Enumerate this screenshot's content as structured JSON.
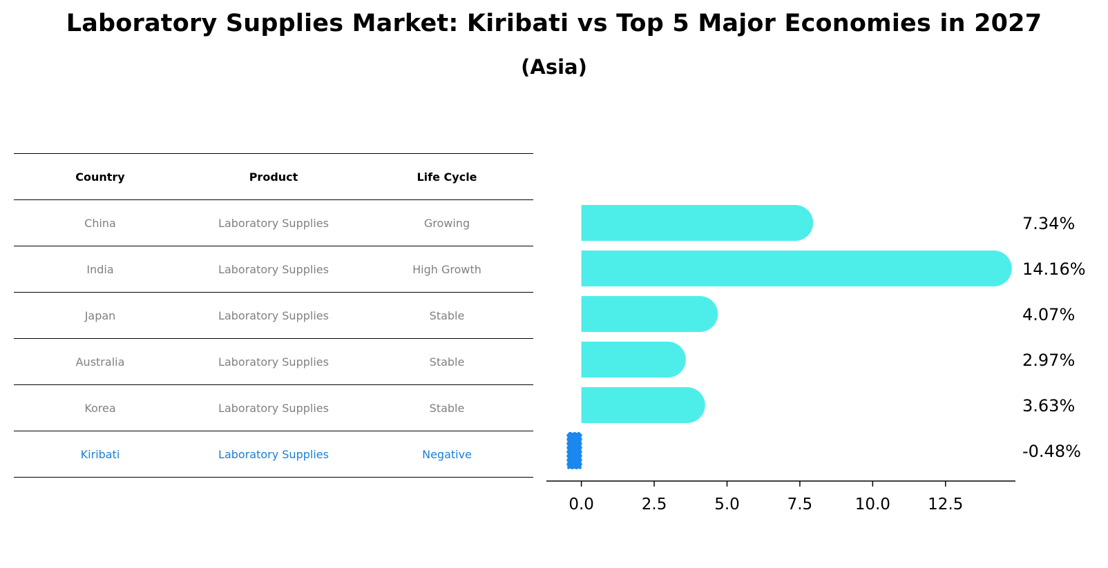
{
  "title": "Laboratory Supplies Market: Kiribati vs Top 5 Major Economies in 2027",
  "subtitle": "(Asia)",
  "table": {
    "headers": [
      "Country",
      "Product",
      "Life Cycle"
    ],
    "rows": [
      [
        "China",
        "Laboratory Supplies",
        "Growing"
      ],
      [
        "India",
        "Laboratory Supplies",
        "High Growth"
      ],
      [
        "Japan",
        "Laboratory Supplies",
        "Stable"
      ],
      [
        "Australia",
        "Laboratory Supplies",
        "Stable"
      ],
      [
        "Korea",
        "Laboratory Supplies",
        "Stable"
      ],
      [
        "Kiribati",
        "Laboratory Supplies",
        "Negative"
      ]
    ],
    "highlight_row": 5
  },
  "colors": {
    "bar": "#4deeea",
    "highlight": "#1a88ee",
    "highlight_text": "#1a7fd4",
    "muted_text": "#808080"
  },
  "chart_data": {
    "type": "bar",
    "orientation": "horizontal",
    "categories": [
      "China",
      "India",
      "Japan",
      "Australia",
      "Korea",
      "Kiribati"
    ],
    "values": [
      7.34,
      14.16,
      4.07,
      2.97,
      3.63,
      -0.48
    ],
    "value_labels": [
      "7.34%",
      "14.16%",
      "4.07%",
      "2.97%",
      "3.63%",
      "-0.48%"
    ],
    "xlim": [
      -1.2,
      14.9
    ],
    "xticks": [
      0.0,
      2.5,
      5.0,
      7.5,
      10.0,
      12.5
    ],
    "xtick_labels": [
      "0.0",
      "2.5",
      "5.0",
      "7.5",
      "10.0",
      "12.5"
    ],
    "xlabel": "",
    "ylabel": "",
    "grid": false
  }
}
